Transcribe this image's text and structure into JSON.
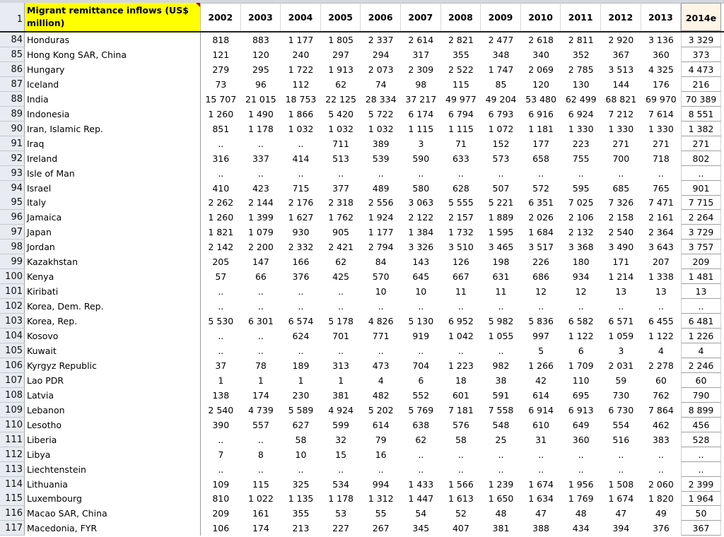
{
  "sheet": {
    "header_row_number": "1",
    "title": "Migrant remittance inflows (US$ million)",
    "years": [
      "2002",
      "2003",
      "2004",
      "2005",
      "2006",
      "2007",
      "2008",
      "2009",
      "2010",
      "2011",
      "2012",
      "2013",
      "2014e"
    ],
    "rows": [
      {
        "n": "84",
        "country": "Honduras",
        "values": [
          "818",
          "883",
          "1 177",
          "1 805",
          "2 337",
          "2 614",
          "2 821",
          "2 477",
          "2 618",
          "2 811",
          "2 920",
          "3 136",
          "3 329"
        ]
      },
      {
        "n": "85",
        "country": "Hong Kong SAR, China",
        "values": [
          "121",
          "120",
          "240",
          "297",
          "294",
          "317",
          "355",
          "348",
          "340",
          "352",
          "367",
          "360",
          "373"
        ]
      },
      {
        "n": "86",
        "country": "Hungary",
        "values": [
          "279",
          "295",
          "1 722",
          "1 913",
          "2 073",
          "2 309",
          "2 522",
          "1 747",
          "2 069",
          "2 785",
          "3 513",
          "4 325",
          "4 473"
        ]
      },
      {
        "n": "87",
        "country": "Iceland",
        "values": [
          "73",
          "96",
          "112",
          "62",
          "74",
          "98",
          "115",
          "85",
          "120",
          "130",
          "144",
          "176",
          "216"
        ]
      },
      {
        "n": "88",
        "country": "India",
        "values": [
          "15 707",
          "21 015",
          "18 753",
          "22 125",
          "28 334",
          "37 217",
          "49 977",
          "49 204",
          "53 480",
          "62 499",
          "68 821",
          "69 970",
          "70 389"
        ]
      },
      {
        "n": "89",
        "country": "Indonesia",
        "values": [
          "1 260",
          "1 490",
          "1 866",
          "5 420",
          "5 722",
          "6 174",
          "6 794",
          "6 793",
          "6 916",
          "6 924",
          "7 212",
          "7 614",
          "8 551"
        ]
      },
      {
        "n": "90",
        "country": "Iran, Islamic Rep.",
        "values": [
          "851",
          "1 178",
          "1 032",
          "1 032",
          "1 032",
          "1 115",
          "1 115",
          "1 072",
          "1 181",
          "1 330",
          "1 330",
          "1 330",
          "1 382"
        ]
      },
      {
        "n": "91",
        "country": "Iraq",
        "values": [
          "..",
          "..",
          "..",
          "711",
          "389",
          "3",
          "71",
          "152",
          "177",
          "223",
          "271",
          "271",
          "271"
        ]
      },
      {
        "n": "92",
        "country": "Ireland",
        "values": [
          "316",
          "337",
          "414",
          "513",
          "539",
          "590",
          "633",
          "573",
          "658",
          "755",
          "700",
          "718",
          "802"
        ]
      },
      {
        "n": "93",
        "country": "Isle of Man",
        "values": [
          "..",
          "..",
          "..",
          "..",
          "..",
          "..",
          "..",
          "..",
          "..",
          "..",
          "..",
          "..",
          ".."
        ]
      },
      {
        "n": "94",
        "country": "Israel",
        "values": [
          "410",
          "423",
          "715",
          "377",
          "489",
          "580",
          "628",
          "507",
          "572",
          "595",
          "685",
          "765",
          "901"
        ]
      },
      {
        "n": "95",
        "country": "Italy",
        "values": [
          "2 262",
          "2 144",
          "2 176",
          "2 318",
          "2 556",
          "3 063",
          "5 555",
          "5 221",
          "6 351",
          "7 025",
          "7 326",
          "7 471",
          "7 715"
        ]
      },
      {
        "n": "96",
        "country": "Jamaica",
        "values": [
          "1 260",
          "1 399",
          "1 627",
          "1 762",
          "1 924",
          "2 122",
          "2 157",
          "1 889",
          "2 026",
          "2 106",
          "2 158",
          "2 161",
          "2 264"
        ]
      },
      {
        "n": "97",
        "country": "Japan",
        "values": [
          "1 821",
          "1 079",
          "930",
          "905",
          "1 177",
          "1 384",
          "1 732",
          "1 595",
          "1 684",
          "2 132",
          "2 540",
          "2 364",
          "3 729"
        ]
      },
      {
        "n": "98",
        "country": "Jordan",
        "values": [
          "2 142",
          "2 200",
          "2 332",
          "2 421",
          "2 794",
          "3 326",
          "3 510",
          "3 465",
          "3 517",
          "3 368",
          "3 490",
          "3 643",
          "3 757"
        ]
      },
      {
        "n": "99",
        "country": "Kazakhstan",
        "values": [
          "205",
          "147",
          "166",
          "62",
          "84",
          "143",
          "126",
          "198",
          "226",
          "180",
          "171",
          "207",
          "209"
        ]
      },
      {
        "n": "100",
        "country": "Kenya",
        "values": [
          "57",
          "66",
          "376",
          "425",
          "570",
          "645",
          "667",
          "631",
          "686",
          "934",
          "1 214",
          "1 338",
          "1 481"
        ]
      },
      {
        "n": "101",
        "country": "Kiribati",
        "values": [
          "..",
          "..",
          "..",
          "..",
          "10",
          "10",
          "11",
          "11",
          "12",
          "12",
          "13",
          "13",
          "13"
        ]
      },
      {
        "n": "102",
        "country": "Korea, Dem. Rep.",
        "values": [
          "..",
          "..",
          "..",
          "..",
          "..",
          "..",
          "..",
          "..",
          "..",
          "..",
          "..",
          "..",
          ".."
        ]
      },
      {
        "n": "103",
        "country": "Korea, Rep.",
        "values": [
          "5 530",
          "6 301",
          "6 574",
          "5 178",
          "4 826",
          "5 130",
          "6 952",
          "5 982",
          "5 836",
          "6 582",
          "6 571",
          "6 455",
          "6 481"
        ]
      },
      {
        "n": "104",
        "country": "Kosovo",
        "values": [
          "..",
          "..",
          "624",
          "701",
          "771",
          "919",
          "1 042",
          "1 055",
          "997",
          "1 122",
          "1 059",
          "1 122",
          "1 226"
        ]
      },
      {
        "n": "105",
        "country": "Kuwait",
        "values": [
          "..",
          "..",
          "..",
          "..",
          "..",
          "..",
          "..",
          "..",
          "5",
          "6",
          "3",
          "4",
          "4"
        ]
      },
      {
        "n": "106",
        "country": "Kyrgyz Republic",
        "values": [
          "37",
          "78",
          "189",
          "313",
          "473",
          "704",
          "1 223",
          "982",
          "1 266",
          "1 709",
          "2 031",
          "2 278",
          "2 246"
        ]
      },
      {
        "n": "107",
        "country": "Lao PDR",
        "values": [
          "1",
          "1",
          "1",
          "1",
          "4",
          "6",
          "18",
          "38",
          "42",
          "110",
          "59",
          "60",
          "60"
        ]
      },
      {
        "n": "108",
        "country": "Latvia",
        "values": [
          "138",
          "174",
          "230",
          "381",
          "482",
          "552",
          "601",
          "591",
          "614",
          "695",
          "730",
          "762",
          "790"
        ]
      },
      {
        "n": "109",
        "country": "Lebanon",
        "values": [
          "2 540",
          "4 739",
          "5 589",
          "4 924",
          "5 202",
          "5 769",
          "7 181",
          "7 558",
          "6 914",
          "6 913",
          "6 730",
          "7 864",
          "8 899"
        ]
      },
      {
        "n": "110",
        "country": "Lesotho",
        "values": [
          "390",
          "557",
          "627",
          "599",
          "614",
          "638",
          "576",
          "548",
          "610",
          "649",
          "554",
          "462",
          "456"
        ]
      },
      {
        "n": "111",
        "country": "Liberia",
        "values": [
          "..",
          "..",
          "58",
          "32",
          "79",
          "62",
          "58",
          "25",
          "31",
          "360",
          "516",
          "383",
          "528"
        ]
      },
      {
        "n": "112",
        "country": "Libya",
        "values": [
          "7",
          "8",
          "10",
          "15",
          "16",
          "..",
          "..",
          "..",
          "..",
          "..",
          "..",
          "..",
          ".."
        ]
      },
      {
        "n": "113",
        "country": "Liechtenstein",
        "values": [
          "..",
          "..",
          "..",
          "..",
          "..",
          "..",
          "..",
          "..",
          "..",
          "..",
          "..",
          "..",
          ".."
        ]
      },
      {
        "n": "114",
        "country": "Lithuania",
        "values": [
          "109",
          "115",
          "325",
          "534",
          "994",
          "1 433",
          "1 566",
          "1 239",
          "1 674",
          "1 956",
          "1 508",
          "2 060",
          "2 399"
        ]
      },
      {
        "n": "115",
        "country": "Luxembourg",
        "values": [
          "810",
          "1 022",
          "1 135",
          "1 178",
          "1 312",
          "1 447",
          "1 613",
          "1 650",
          "1 634",
          "1 769",
          "1 674",
          "1 820",
          "1 964"
        ]
      },
      {
        "n": "116",
        "country": "Macao SAR, China",
        "values": [
          "209",
          "161",
          "355",
          "53",
          "55",
          "54",
          "52",
          "48",
          "47",
          "48",
          "47",
          "49",
          "50"
        ]
      },
      {
        "n": "117",
        "country": "Macedonia, FYR",
        "values": [
          "106",
          "174",
          "213",
          "227",
          "267",
          "345",
          "407",
          "381",
          "388",
          "434",
          "394",
          "376",
          "367"
        ]
      }
    ]
  }
}
